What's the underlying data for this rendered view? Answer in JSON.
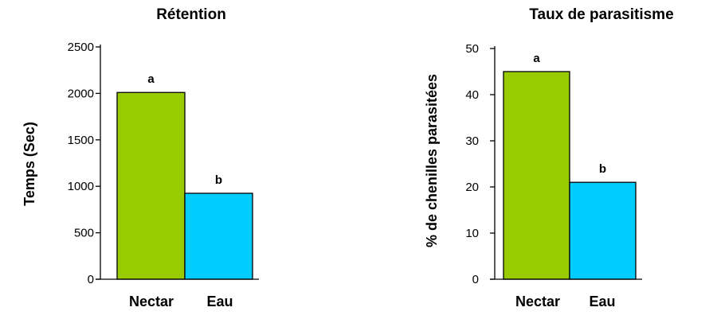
{
  "chart_data": [
    {
      "type": "bar",
      "title": "Rétention",
      "xlabel": "",
      "ylabel": "Temps  (Sec)",
      "categories": [
        "Nectar",
        "Eau"
      ],
      "values": [
        2010,
        925
      ],
      "labels": [
        "a",
        "b"
      ],
      "colors": [
        "#99cc00",
        "#00ccff"
      ],
      "ylim": [
        0,
        2500
      ],
      "yticks": [
        0,
        500,
        1000,
        1500,
        2000,
        2500
      ],
      "grid": false,
      "legend": "none"
    },
    {
      "type": "bar",
      "title": "Taux de parasitisme",
      "xlabel": "",
      "ylabel": "% de chenilles parasitées",
      "categories": [
        "Nectar",
        "Eau"
      ],
      "values": [
        45,
        21
      ],
      "labels": [
        "a",
        "b"
      ],
      "colors": [
        "#99cc00",
        "#00ccff"
      ],
      "ylim": [
        0,
        50
      ],
      "yticks": [
        0,
        10,
        20,
        30,
        40,
        50
      ],
      "grid": false,
      "legend": "none"
    }
  ]
}
